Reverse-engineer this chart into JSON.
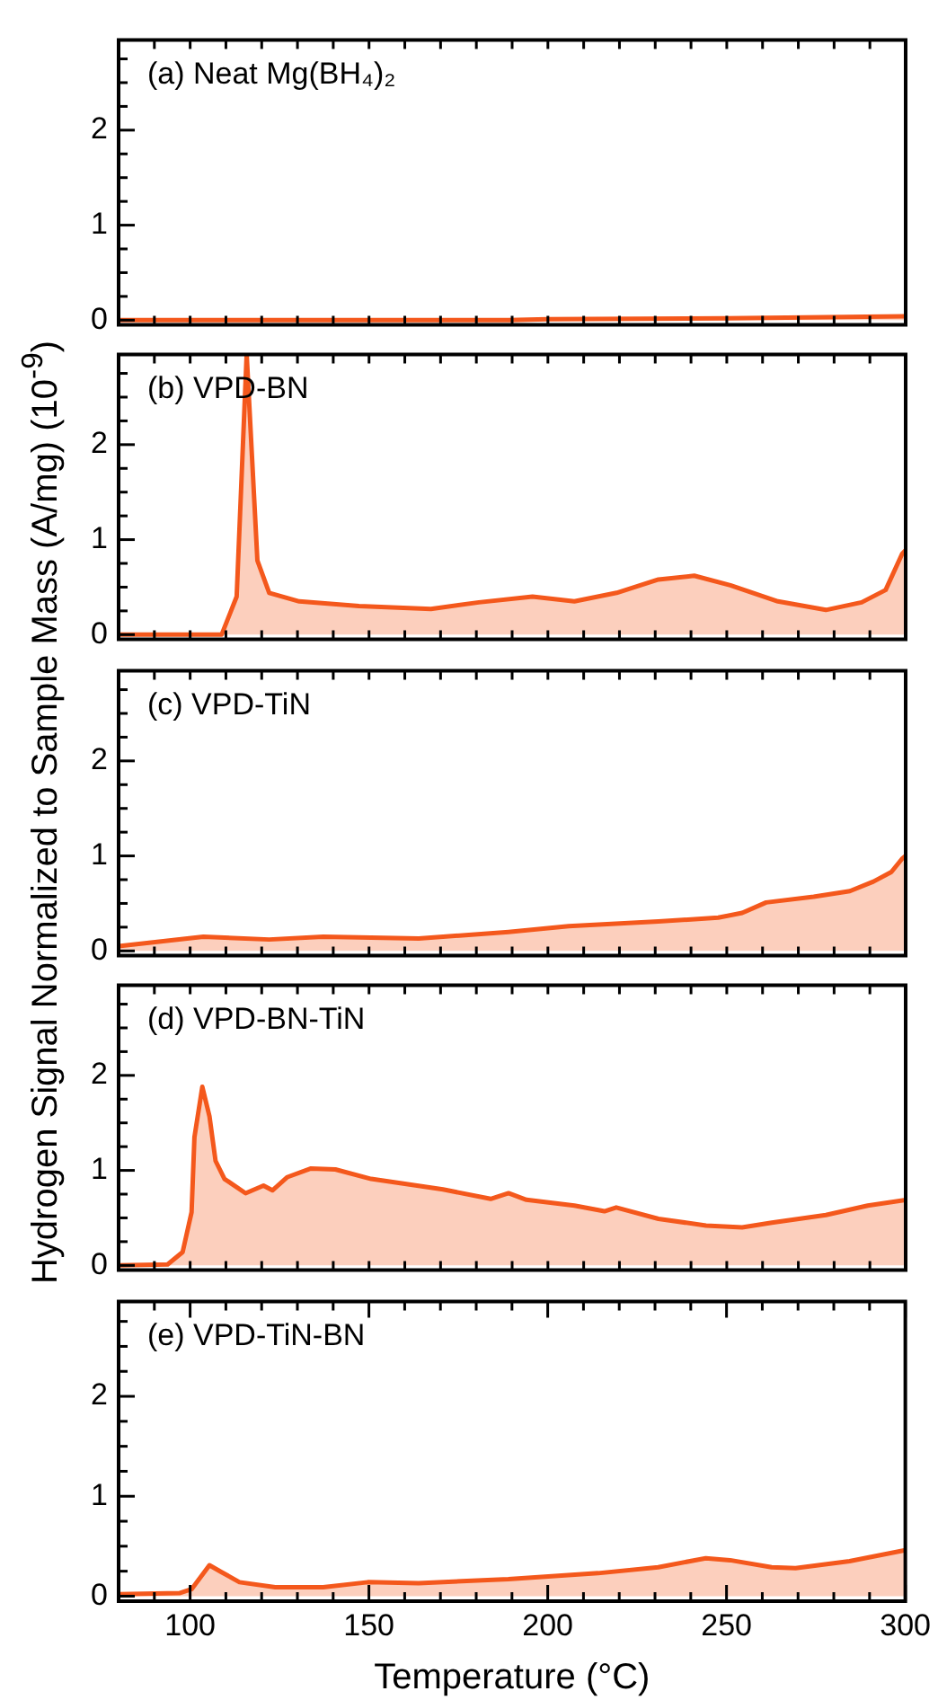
{
  "chart_data": [
    {
      "type": "area",
      "title": "(a) Neat Mg(BH₄)₂",
      "marker": "none",
      "tick_labels": "y",
      "x": [
        80,
        150,
        189,
        200,
        250,
        300
      ],
      "series": [
        {
          "color": "#f4581c",
          "values": [
            0,
            0,
            0,
            0.01,
            0.02,
            0.04
          ]
        }
      ],
      "xlim": [
        80,
        300
      ],
      "xticks": [
        {
          "value": 90,
          "label": null
        },
        {
          "value": 100,
          "label": null
        },
        {
          "value": 110,
          "label": null
        },
        {
          "value": 120,
          "label": null
        },
        {
          "value": 130,
          "label": null
        },
        {
          "value": 140,
          "label": null
        },
        {
          "value": 150,
          "label": null
        },
        {
          "value": 160,
          "label": null
        },
        {
          "value": 170,
          "label": null
        },
        {
          "value": 180,
          "label": null
        },
        {
          "value": 190,
          "label": null
        },
        {
          "value": 200,
          "label": null
        },
        {
          "value": 210,
          "label": null
        },
        {
          "value": 220,
          "label": null
        },
        {
          "value": 230,
          "label": null
        },
        {
          "value": 240,
          "label": null
        },
        {
          "value": 250,
          "label": null
        },
        {
          "value": 260,
          "label": null
        },
        {
          "value": 270,
          "label": null
        },
        {
          "value": 280,
          "label": null
        },
        {
          "value": 290,
          "label": null
        }
      ],
      "ylim": [
        -0.05,
        2.95
      ],
      "yticks": [
        0,
        {
          "value": 0.25,
          "label": null
        },
        {
          "value": 0.5,
          "label": null
        },
        {
          "value": 0.75,
          "label": null
        },
        1,
        {
          "value": 1.25,
          "label": null
        },
        {
          "value": 1.5,
          "label": null
        },
        {
          "value": 1.75,
          "label": null
        },
        2,
        {
          "value": 2.25,
          "label": null
        },
        {
          "value": 2.5,
          "label": null
        },
        {
          "value": 2.75,
          "label": null
        }
      ]
    },
    {
      "type": "area",
      "title": "(b) VPD-BN",
      "marker": "none",
      "tick_labels": "y",
      "x": [
        80,
        108.8,
        113,
        115.8,
        118.8,
        122.1,
        130.5,
        147.2,
        167.3,
        180.7,
        195.7,
        207.4,
        219.2,
        230.9,
        240.9,
        251,
        264.3,
        277.7,
        287.7,
        294.4,
        299,
        300
      ],
      "series": [
        {
          "color": "#f4581c",
          "values": [
            0,
            0,
            0.4,
            2.95,
            0.78,
            0.44,
            0.35,
            0.3,
            0.27,
            0.34,
            0.4,
            0.35,
            0.44,
            0.58,
            0.62,
            0.52,
            0.35,
            0.26,
            0.34,
            0.47,
            0.85,
            0.89
          ]
        }
      ],
      "xlim": [
        80,
        300
      ],
      "xticks": [
        {
          "value": 90,
          "label": null
        },
        {
          "value": 100,
          "label": null
        },
        {
          "value": 110,
          "label": null
        },
        {
          "value": 120,
          "label": null
        },
        {
          "value": 130,
          "label": null
        },
        {
          "value": 140,
          "label": null
        },
        {
          "value": 150,
          "label": null
        },
        {
          "value": 160,
          "label": null
        },
        {
          "value": 170,
          "label": null
        },
        {
          "value": 180,
          "label": null
        },
        {
          "value": 190,
          "label": null
        },
        {
          "value": 200,
          "label": null
        },
        {
          "value": 210,
          "label": null
        },
        {
          "value": 220,
          "label": null
        },
        {
          "value": 230,
          "label": null
        },
        {
          "value": 240,
          "label": null
        },
        {
          "value": 250,
          "label": null
        },
        {
          "value": 260,
          "label": null
        },
        {
          "value": 270,
          "label": null
        },
        {
          "value": 280,
          "label": null
        },
        {
          "value": 290,
          "label": null
        }
      ],
      "ylim": [
        -0.05,
        2.95
      ],
      "yticks": [
        0,
        {
          "value": 0.25,
          "label": null
        },
        {
          "value": 0.5,
          "label": null
        },
        {
          "value": 0.75,
          "label": null
        },
        1,
        {
          "value": 1.25,
          "label": null
        },
        {
          "value": 1.5,
          "label": null
        },
        {
          "value": 1.75,
          "label": null
        },
        2,
        {
          "value": 2.25,
          "label": null
        },
        {
          "value": 2.5,
          "label": null
        },
        {
          "value": 2.75,
          "label": null
        }
      ]
    },
    {
      "type": "area",
      "title": "(c) VPD-TiN",
      "ylabel": "Hydrogen Signal Normalized to Sample Mass (A/mg) (10$^{-9}$)",
      "marker": "none",
      "tick_labels": "y",
      "x": [
        80,
        103.7,
        122.1,
        137.2,
        163.9,
        189,
        205.8,
        230.9,
        247.6,
        254.3,
        261,
        274.3,
        284.4,
        291,
        296,
        299,
        300
      ],
      "series": [
        {
          "color": "#f4581c",
          "values": [
            0.05,
            0.15,
            0.12,
            0.15,
            0.13,
            0.2,
            0.26,
            0.31,
            0.35,
            0.4,
            0.51,
            0.57,
            0.63,
            0.73,
            0.83,
            0.97,
            1.0
          ]
        }
      ],
      "xlim": [
        80,
        300
      ],
      "xticks": [
        {
          "value": 90,
          "label": null
        },
        {
          "value": 100,
          "label": null
        },
        {
          "value": 110,
          "label": null
        },
        {
          "value": 120,
          "label": null
        },
        {
          "value": 130,
          "label": null
        },
        {
          "value": 140,
          "label": null
        },
        {
          "value": 150,
          "label": null
        },
        {
          "value": 160,
          "label": null
        },
        {
          "value": 170,
          "label": null
        },
        {
          "value": 180,
          "label": null
        },
        {
          "value": 190,
          "label": null
        },
        {
          "value": 200,
          "label": null
        },
        {
          "value": 210,
          "label": null
        },
        {
          "value": 220,
          "label": null
        },
        {
          "value": 230,
          "label": null
        },
        {
          "value": 240,
          "label": null
        },
        {
          "value": 250,
          "label": null
        },
        {
          "value": 260,
          "label": null
        },
        {
          "value": 270,
          "label": null
        },
        {
          "value": 280,
          "label": null
        },
        {
          "value": 290,
          "label": null
        }
      ],
      "ylim": [
        -0.05,
        2.95
      ],
      "yticks": [
        0,
        {
          "value": 0.25,
          "label": null
        },
        {
          "value": 0.5,
          "label": null
        },
        {
          "value": 0.75,
          "label": null
        },
        1,
        {
          "value": 1.25,
          "label": null
        },
        {
          "value": 1.5,
          "label": null
        },
        {
          "value": 1.75,
          "label": null
        },
        2,
        {
          "value": 2.25,
          "label": null
        },
        {
          "value": 2.5,
          "label": null
        },
        {
          "value": 2.75,
          "label": null
        }
      ]
    },
    {
      "type": "area",
      "title": "(d) VPD-BN-TiN",
      "marker": "none",
      "tick_labels": "y",
      "x": [
        80,
        93.7,
        97.9,
        100.4,
        101.2,
        103.4,
        105.4,
        107.1,
        109.6,
        115.5,
        120.5,
        123,
        127.2,
        133.8,
        140.6,
        150.6,
        170.7,
        184,
        189,
        194,
        207.4,
        215.8,
        219.1,
        230.9,
        244.2,
        254.3,
        262.6,
        277.7,
        289.4,
        300
      ],
      "series": [
        {
          "color": "#f4581c",
          "values": [
            0,
            0.01,
            0.14,
            0.56,
            1.35,
            1.88,
            1.57,
            1.1,
            0.91,
            0.76,
            0.84,
            0.79,
            0.93,
            1.02,
            1.01,
            0.91,
            0.8,
            0.7,
            0.76,
            0.69,
            0.63,
            0.57,
            0.61,
            0.49,
            0.42,
            0.4,
            0.45,
            0.53,
            0.63,
            0.69
          ]
        }
      ],
      "xlim": [
        80,
        300
      ],
      "xticks": [
        {
          "value": 90,
          "label": null
        },
        {
          "value": 100,
          "label": null
        },
        {
          "value": 110,
          "label": null
        },
        {
          "value": 120,
          "label": null
        },
        {
          "value": 130,
          "label": null
        },
        {
          "value": 140,
          "label": null
        },
        {
          "value": 150,
          "label": null
        },
        {
          "value": 160,
          "label": null
        },
        {
          "value": 170,
          "label": null
        },
        {
          "value": 180,
          "label": null
        },
        {
          "value": 190,
          "label": null
        },
        {
          "value": 200,
          "label": null
        },
        {
          "value": 210,
          "label": null
        },
        {
          "value": 220,
          "label": null
        },
        {
          "value": 230,
          "label": null
        },
        {
          "value": 240,
          "label": null
        },
        {
          "value": 250,
          "label": null
        },
        {
          "value": 260,
          "label": null
        },
        {
          "value": 270,
          "label": null
        },
        {
          "value": 280,
          "label": null
        },
        {
          "value": 290,
          "label": null
        }
      ],
      "ylim": [
        -0.05,
        2.95
      ],
      "yticks": [
        0,
        {
          "value": 0.25,
          "label": null
        },
        {
          "value": 0.5,
          "label": null
        },
        {
          "value": 0.75,
          "label": null
        },
        1,
        {
          "value": 1.25,
          "label": null
        },
        {
          "value": 1.5,
          "label": null
        },
        {
          "value": 1.75,
          "label": null
        },
        2,
        {
          "value": 2.25,
          "label": null
        },
        {
          "value": 2.5,
          "label": null
        },
        {
          "value": 2.75,
          "label": null
        }
      ]
    },
    {
      "type": "area",
      "title": "(e) VPD-TiN-BN",
      "xlabel": "Temperature (°C)",
      "marker": "none",
      "x": [
        80,
        97,
        100.4,
        105.4,
        108.8,
        113.8,
        123.8,
        137.2,
        149.7,
        163.9,
        189,
        214.1,
        230.9,
        244.2,
        251,
        262.6,
        269.3,
        284.4,
        300
      ],
      "series": [
        {
          "color": "#f4581c",
          "values": [
            0.02,
            0.03,
            0.07,
            0.31,
            0.24,
            0.14,
            0.09,
            0.09,
            0.14,
            0.13,
            0.17,
            0.23,
            0.29,
            0.38,
            0.36,
            0.29,
            0.28,
            0.35,
            0.46
          ]
        }
      ],
      "xlim": [
        80,
        300
      ],
      "xticks": [
        {
          "value": 90,
          "label": null
        },
        100,
        {
          "value": 110,
          "label": null
        },
        {
          "value": 120,
          "label": null
        },
        {
          "value": 130,
          "label": null
        },
        {
          "value": 140,
          "label": null
        },
        150,
        {
          "value": 160,
          "label": null
        },
        {
          "value": 170,
          "label": null
        },
        {
          "value": 180,
          "label": null
        },
        {
          "value": 190,
          "label": null
        },
        200,
        {
          "value": 210,
          "label": null
        },
        {
          "value": 220,
          "label": null
        },
        {
          "value": 230,
          "label": null
        },
        {
          "value": 240,
          "label": null
        },
        250,
        {
          "value": 260,
          "label": null
        },
        {
          "value": 270,
          "label": null
        },
        {
          "value": 280,
          "label": null
        },
        {
          "value": 290,
          "label": null
        },
        300
      ],
      "ylim": [
        -0.05,
        2.95
      ],
      "yticks": [
        0,
        {
          "value": 0.25,
          "label": null
        },
        {
          "value": 0.5,
          "label": null
        },
        {
          "value": 0.75,
          "label": null
        },
        1,
        {
          "value": 1.25,
          "label": null
        },
        {
          "value": 1.5,
          "label": null
        },
        {
          "value": 1.75,
          "label": null
        },
        2,
        {
          "value": 2.25,
          "label": null
        },
        {
          "value": 2.5,
          "label": null
        },
        {
          "value": 2.75,
          "label": null
        }
      ]
    }
  ]
}
